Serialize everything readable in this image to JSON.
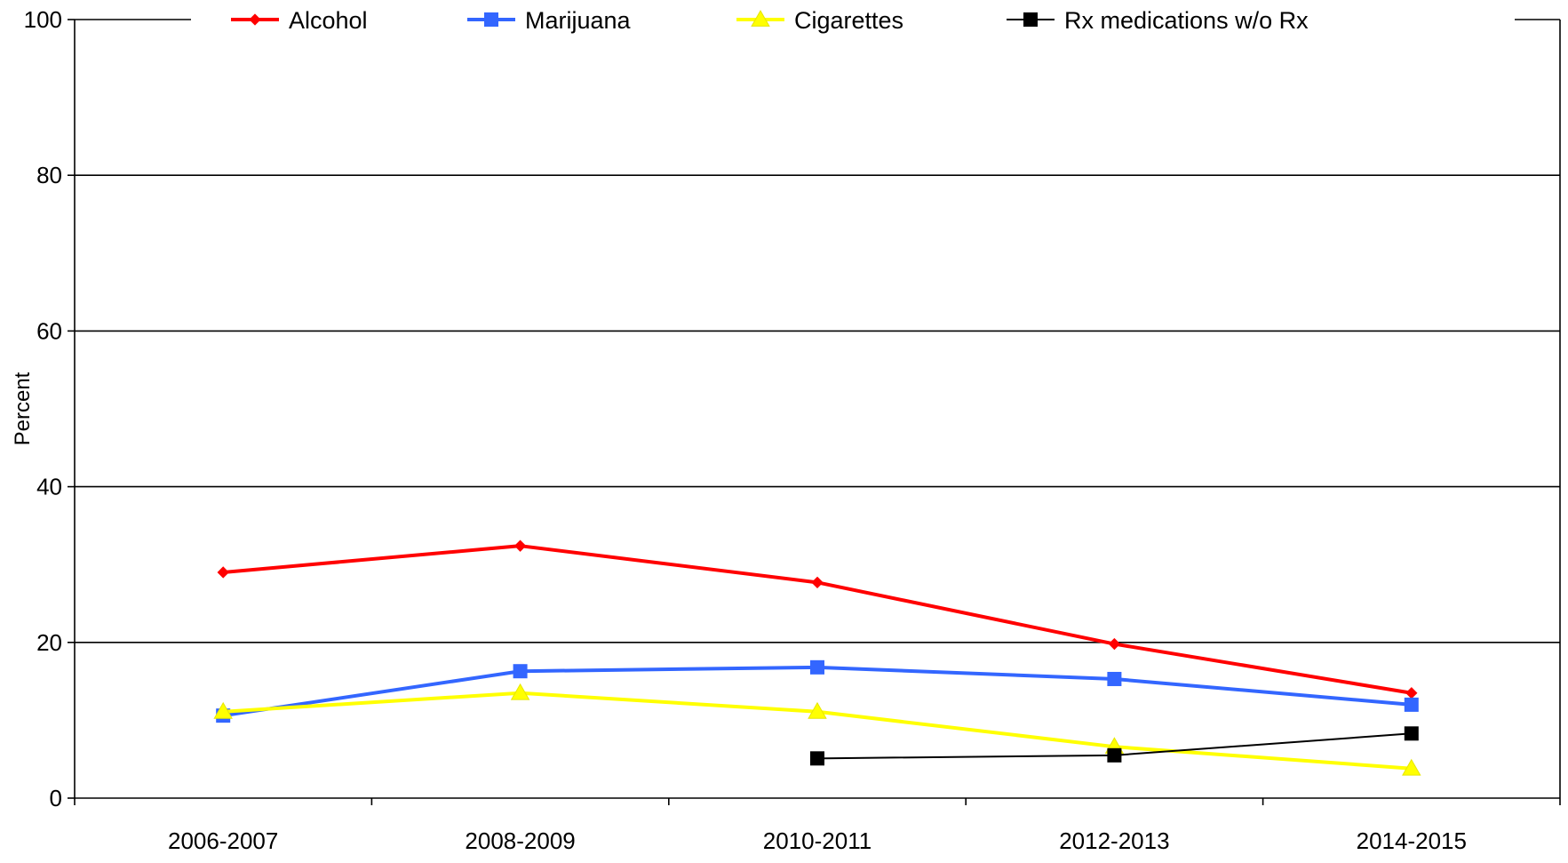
{
  "chart_data": {
    "type": "line",
    "title": "",
    "xlabel": "",
    "ylabel": "Percent",
    "ylim": [
      0,
      100
    ],
    "yticks": [
      0,
      20,
      40,
      60,
      80,
      100
    ],
    "categories": [
      "2006-2007",
      "2008-2009",
      "2010-2011",
      "2012-2013",
      "2014-2015"
    ],
    "grid": true,
    "legend_position": "top",
    "series": [
      {
        "name": "Alcohol",
        "color": "#FF0000",
        "marker": "diamond",
        "values": [
          29.0,
          32.4,
          27.7,
          19.8,
          13.5
        ]
      },
      {
        "name": "Marijuana",
        "color": "#3366FF",
        "marker": "square",
        "values": [
          10.6,
          16.3,
          16.8,
          15.3,
          12.0
        ]
      },
      {
        "name": "Cigarettes",
        "color": "#FFFF00",
        "marker": "triangle",
        "values": [
          11.1,
          13.5,
          11.1,
          6.6,
          3.8
        ]
      },
      {
        "name": "Rx medications w/o Rx",
        "color": "#000000",
        "marker": "square",
        "values": [
          null,
          null,
          5.1,
          5.5,
          8.3
        ]
      }
    ]
  }
}
